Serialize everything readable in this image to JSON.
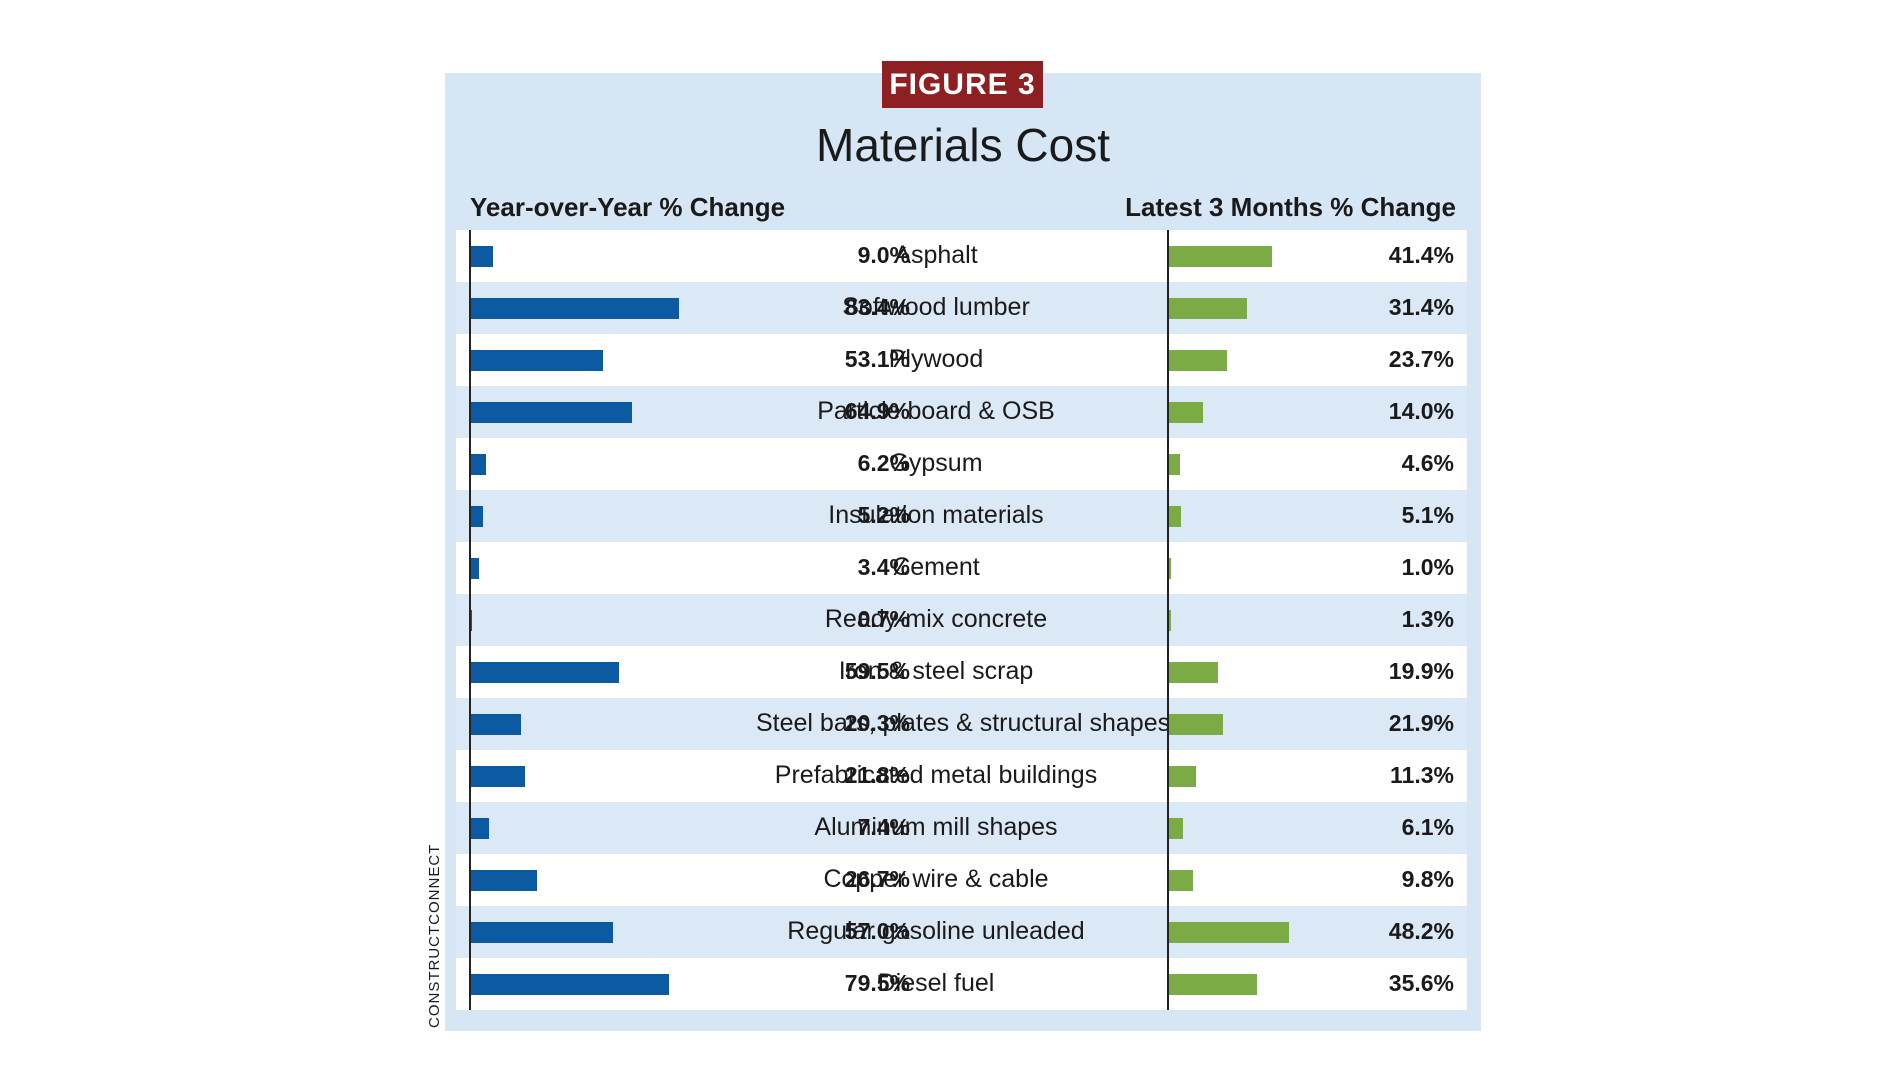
{
  "badge": "FIGURE 3",
  "source": "CONSTRUCTCONNECT",
  "colors": {
    "yoy_bar": "#0b5aa2",
    "three_month_bar": "#7bab44",
    "panel": "#d6e6f5",
    "badge": "#8e1f22"
  },
  "chart_data": {
    "type": "bar",
    "title": "Materials Cost",
    "orientation": "horizontal",
    "categories": [
      "Asphalt",
      "Softwood lumber",
      "Plywood",
      "Particle board & OSB",
      "Gypsum",
      "Insulation materials",
      "Cement",
      "Ready-mix concrete",
      "Iron & steel scrap",
      "Steel bars, plates & structural shapes",
      "Prefabricated metal buildings",
      "Aluminum mill shapes",
      "Copper wire & cable",
      "Regular gasoline unleaded",
      "Diesel fuel"
    ],
    "series": [
      {
        "name": "Year-over-Year % Change",
        "values": [
          9.0,
          83.4,
          53.1,
          64.9,
          6.2,
          5.2,
          3.4,
          0.7,
          59.5,
          20.3,
          21.8,
          7.4,
          26.7,
          57.0,
          79.5
        ],
        "labels": [
          "9.0%",
          "83.4%",
          "53.1%",
          "64.9%",
          "6.2%",
          "5.2%",
          "3.4%",
          "0.7%",
          "59.5%",
          "20.3%",
          "21.8%",
          "7.4%",
          "26.7%",
          "57.0%",
          "79.5%"
        ]
      },
      {
        "name": "Latest 3 Months % Change",
        "values": [
          41.4,
          31.4,
          23.7,
          14.0,
          4.6,
          5.1,
          1.0,
          1.3,
          19.9,
          21.9,
          11.3,
          6.1,
          9.8,
          48.2,
          35.6
        ],
        "labels": [
          "41.4%",
          "31.4%",
          "23.7%",
          "14.0%",
          "4.6%",
          "5.1%",
          "1.0%",
          "1.3%",
          "19.9%",
          "21.9%",
          "11.3%",
          "6.1%",
          "9.8%",
          "48.2%",
          "35.6%"
        ]
      }
    ],
    "grid": false,
    "legend": "none"
  }
}
